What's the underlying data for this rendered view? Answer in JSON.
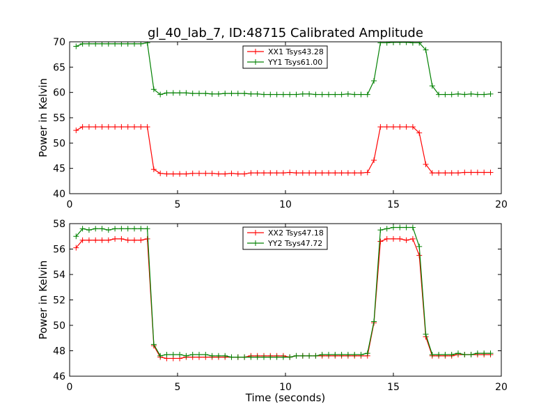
{
  "title": "gl_40_lab_7, ID:48715 Calibrated Amplitude",
  "chart_data": [
    {
      "type": "line",
      "title": "gl_40_lab_7, ID:48715 Calibrated Amplitude",
      "xlabel": "",
      "ylabel": "Power in Kelvin",
      "xlim": [
        0,
        20
      ],
      "ylim": [
        40,
        70
      ],
      "xticks": [
        0,
        5,
        10,
        15,
        20
      ],
      "yticks": [
        40,
        45,
        50,
        55,
        60,
        65,
        70
      ],
      "grid": false,
      "legend_position": "top-center",
      "x": [
        0.3,
        0.6,
        0.9,
        1.2,
        1.5,
        1.8,
        2.1,
        2.4,
        2.7,
        3.0,
        3.3,
        3.6,
        3.9,
        4.2,
        4.5,
        4.8,
        5.1,
        5.4,
        5.7,
        6.0,
        6.3,
        6.6,
        6.9,
        7.2,
        7.5,
        7.8,
        8.1,
        8.4,
        8.7,
        9.0,
        9.3,
        9.6,
        9.9,
        10.2,
        10.5,
        10.8,
        11.1,
        11.4,
        11.7,
        12.0,
        12.3,
        12.6,
        12.9,
        13.2,
        13.5,
        13.8,
        14.1,
        14.4,
        14.7,
        15.0,
        15.3,
        15.6,
        15.9,
        16.2,
        16.5,
        16.8,
        17.1,
        17.4,
        17.7,
        18.0,
        18.3,
        18.6,
        18.9,
        19.2,
        19.5
      ],
      "series": [
        {
          "name": "XX1 Tsys43.28",
          "color": "#ff0000",
          "values": [
            52.5,
            53.2,
            53.2,
            53.2,
            53.2,
            53.2,
            53.2,
            53.2,
            53.2,
            53.2,
            53.2,
            53.2,
            44.8,
            44.0,
            43.9,
            43.9,
            43.9,
            43.9,
            44.0,
            44.0,
            44.0,
            44.0,
            43.9,
            43.9,
            44.0,
            43.9,
            43.9,
            44.1,
            44.1,
            44.1,
            44.1,
            44.1,
            44.1,
            44.2,
            44.1,
            44.1,
            44.1,
            44.1,
            44.1,
            44.1,
            44.1,
            44.1,
            44.1,
            44.1,
            44.1,
            44.2,
            46.6,
            53.2,
            53.2,
            53.2,
            53.2,
            53.2,
            53.2,
            52.0,
            45.8,
            44.1,
            44.1,
            44.1,
            44.1,
            44.1,
            44.2,
            44.2,
            44.2,
            44.2,
            44.2
          ]
        },
        {
          "name": "YY1 Tsys61.00",
          "color": "#008000",
          "values": [
            69.1,
            69.6,
            69.6,
            69.6,
            69.6,
            69.6,
            69.6,
            69.6,
            69.6,
            69.6,
            69.6,
            69.8,
            60.6,
            59.6,
            59.9,
            59.9,
            59.9,
            59.9,
            59.8,
            59.8,
            59.8,
            59.7,
            59.7,
            59.8,
            59.8,
            59.8,
            59.8,
            59.7,
            59.7,
            59.6,
            59.6,
            59.6,
            59.6,
            59.6,
            59.6,
            59.7,
            59.7,
            59.6,
            59.6,
            59.6,
            59.6,
            59.6,
            59.7,
            59.6,
            59.6,
            59.6,
            62.3,
            69.8,
            69.8,
            69.9,
            69.9,
            69.9,
            69.8,
            69.8,
            68.4,
            61.3,
            59.6,
            59.6,
            59.6,
            59.7,
            59.6,
            59.7,
            59.6,
            59.6,
            59.7
          ]
        }
      ]
    },
    {
      "type": "line",
      "title": "",
      "xlabel": "Time (seconds)",
      "ylabel": "Power in Kelvin",
      "xlim": [
        0,
        20
      ],
      "ylim": [
        46,
        58
      ],
      "xticks": [
        0,
        5,
        10,
        15,
        20
      ],
      "yticks": [
        46,
        48,
        50,
        52,
        54,
        56,
        58
      ],
      "grid": false,
      "legend_position": "top-center",
      "x": [
        0.3,
        0.6,
        0.9,
        1.2,
        1.5,
        1.8,
        2.1,
        2.4,
        2.7,
        3.0,
        3.3,
        3.6,
        3.9,
        4.2,
        4.5,
        4.8,
        5.1,
        5.4,
        5.7,
        6.0,
        6.3,
        6.6,
        6.9,
        7.2,
        7.5,
        7.8,
        8.1,
        8.4,
        8.7,
        9.0,
        9.3,
        9.6,
        9.9,
        10.2,
        10.5,
        10.8,
        11.1,
        11.4,
        11.7,
        12.0,
        12.3,
        12.6,
        12.9,
        13.2,
        13.5,
        13.8,
        14.1,
        14.4,
        14.7,
        15.0,
        15.3,
        15.6,
        15.9,
        16.2,
        16.5,
        16.8,
        17.1,
        17.4,
        17.7,
        18.0,
        18.3,
        18.6,
        18.9,
        19.2,
        19.5
      ],
      "series": [
        {
          "name": "XX2 Tsys47.18",
          "color": "#ff0000",
          "values": [
            56.1,
            56.7,
            56.7,
            56.7,
            56.7,
            56.7,
            56.8,
            56.8,
            56.7,
            56.7,
            56.7,
            56.8,
            48.4,
            47.5,
            47.4,
            47.4,
            47.4,
            47.5,
            47.5,
            47.5,
            47.5,
            47.5,
            47.5,
            47.5,
            47.5,
            47.5,
            47.5,
            47.6,
            47.6,
            47.6,
            47.6,
            47.6,
            47.6,
            47.5,
            47.6,
            47.6,
            47.6,
            47.6,
            47.6,
            47.6,
            47.6,
            47.6,
            47.6,
            47.6,
            47.6,
            47.6,
            50.2,
            56.6,
            56.8,
            56.8,
            56.8,
            56.7,
            56.8,
            55.5,
            49.1,
            47.6,
            47.6,
            47.6,
            47.6,
            47.7,
            47.7,
            47.7,
            47.7,
            47.7,
            47.7
          ]
        },
        {
          "name": "YY2 Tsys47.72",
          "color": "#008000",
          "values": [
            57.0,
            57.6,
            57.5,
            57.6,
            57.6,
            57.5,
            57.6,
            57.6,
            57.6,
            57.6,
            57.6,
            57.6,
            48.5,
            47.6,
            47.7,
            47.7,
            47.7,
            47.6,
            47.7,
            47.7,
            47.7,
            47.6,
            47.6,
            47.6,
            47.5,
            47.5,
            47.5,
            47.5,
            47.5,
            47.5,
            47.5,
            47.5,
            47.5,
            47.5,
            47.6,
            47.6,
            47.6,
            47.6,
            47.7,
            47.7,
            47.7,
            47.7,
            47.7,
            47.7,
            47.7,
            47.8,
            50.3,
            57.5,
            57.6,
            57.7,
            57.7,
            57.7,
            57.7,
            56.2,
            49.3,
            47.7,
            47.7,
            47.7,
            47.7,
            47.8,
            47.7,
            47.7,
            47.8,
            47.8,
            47.8
          ]
        }
      ]
    }
  ]
}
